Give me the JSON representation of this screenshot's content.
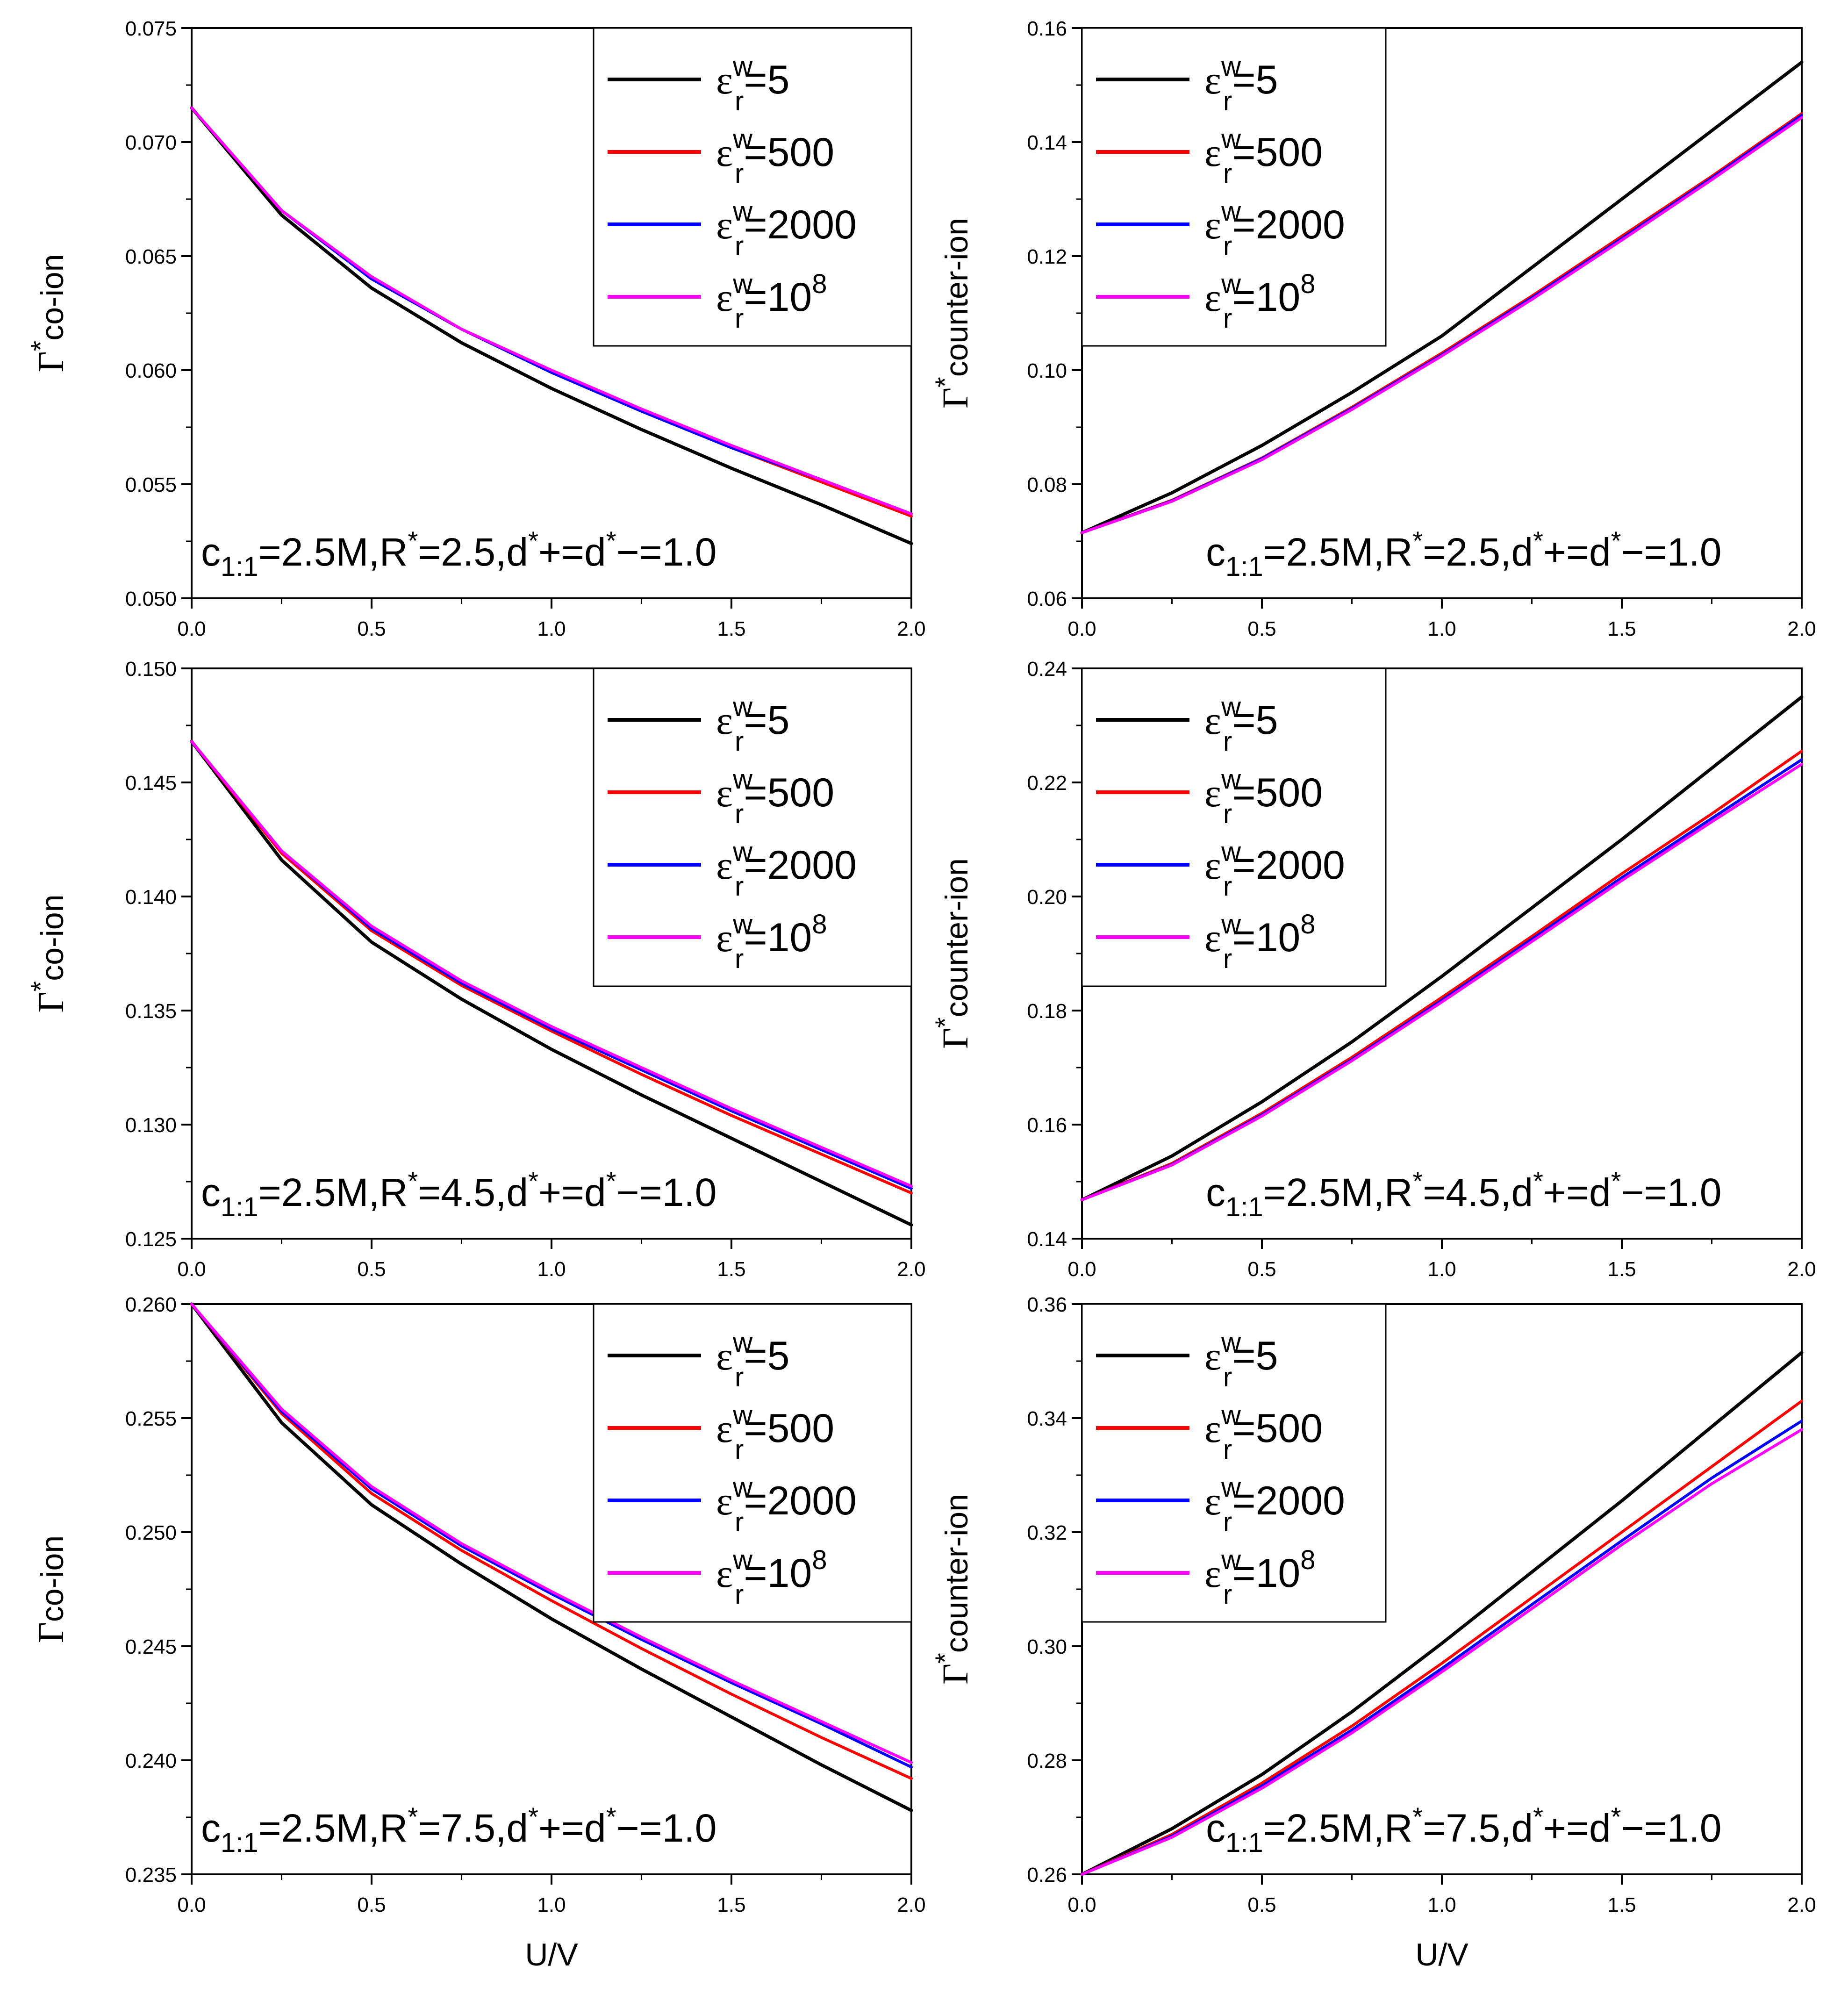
{
  "figure": {
    "x_axis_label": "U/V",
    "legend_epsilon_symbol": "ε",
    "legend_superscript": "w",
    "legend_subscript": "r",
    "series": [
      {
        "name": "ε^w_r=5",
        "value_text": "=5",
        "exp": "",
        "color": "#000000"
      },
      {
        "name": "ε^w_r=500",
        "value_text": "=500",
        "exp": "",
        "color": "#ff0000"
      },
      {
        "name": "ε^w_r=2000",
        "value_text": "=2000",
        "exp": "",
        "color": "#0000ff"
      },
      {
        "name": "ε^w_r=10^8",
        "value_text": "=10",
        "exp": "8",
        "color": "#ff00ff"
      }
    ]
  },
  "chart_data": [
    {
      "type": "line",
      "panel": "top-left",
      "ylabel": "Γ*co-ion",
      "ylabel_sym": "Γ",
      "ylabel_star": "*",
      "ylabel_rest": "co-ion",
      "xlabel": "",
      "xlim": [
        0,
        2
      ],
      "ylim": [
        0.05,
        0.075
      ],
      "xticks": [
        "0.0",
        "0.5",
        "1.0",
        "1.5",
        "2.0"
      ],
      "yticks": [
        "0.050",
        "0.055",
        "0.060",
        "0.065",
        "0.070",
        "0.075"
      ],
      "annotation": "c1:1=2.5M,R*=2.5,d*+=d*−=1.0",
      "ann": {
        "c": "c",
        "sub": "1:1",
        "a": "=2.5M,R",
        "star1": "*",
        "b": "=2.5,d",
        "star2": "*",
        "c2": "+=d",
        "star3": "*",
        "d": "−=1.0"
      },
      "legend_position": "top-right",
      "x": [
        0,
        0.25,
        0.5,
        0.75,
        1.0,
        1.25,
        1.5,
        1.75,
        2.0
      ],
      "series": [
        {
          "name": "ε^w_r=5",
          "values": [
            0.0715,
            0.0668,
            0.0636,
            0.0612,
            0.0592,
            0.0574,
            0.0557,
            0.0541,
            0.0524
          ]
        },
        {
          "name": "ε^w_r=500",
          "values": [
            0.0715,
            0.067,
            0.064,
            0.0618,
            0.0599,
            0.0582,
            0.0566,
            0.0551,
            0.0536
          ]
        },
        {
          "name": "ε^w_r=2000",
          "values": [
            0.0715,
            0.067,
            0.064,
            0.0618,
            0.0599,
            0.0582,
            0.0566,
            0.0552,
            0.0537
          ]
        },
        {
          "name": "ε^w_r=10^8",
          "values": [
            0.0715,
            0.067,
            0.0641,
            0.0618,
            0.06,
            0.0583,
            0.0567,
            0.0552,
            0.0537
          ]
        }
      ]
    },
    {
      "type": "line",
      "panel": "top-right",
      "ylabel": "Γ*counter-ion",
      "ylabel_sym": "Γ",
      "ylabel_star": "*",
      "ylabel_rest": "counter-ion",
      "xlabel": "",
      "xlim": [
        0,
        2
      ],
      "ylim": [
        0.06,
        0.16
      ],
      "xticks": [
        "0.0",
        "0.5",
        "1.0",
        "1.5",
        "2.0"
      ],
      "yticks": [
        "0.06",
        "0.08",
        "0.10",
        "0.12",
        "0.14",
        "0.16"
      ],
      "annotation": "c1:1=2.5M,R*=2.5,d*+=d*−=1.0",
      "ann": {
        "c": "c",
        "sub": "1:1",
        "a": "=2.5M,R",
        "star1": "*",
        "b": "=2.5,d",
        "star2": "*",
        "c2": "+=d",
        "star3": "*",
        "d": "−=1.0"
      },
      "legend_position": "top-left",
      "x": [
        0,
        0.25,
        0.5,
        0.75,
        1.0,
        1.25,
        1.5,
        1.75,
        2.0
      ],
      "series": [
        {
          "name": "ε^w_r=5",
          "values": [
            0.0715,
            0.0785,
            0.0868,
            0.0961,
            0.106,
            0.118,
            0.13,
            0.142,
            0.154
          ]
        },
        {
          "name": "ε^w_r=500",
          "values": [
            0.0715,
            0.0772,
            0.0846,
            0.0935,
            0.103,
            0.113,
            0.1235,
            0.134,
            0.145
          ]
        },
        {
          "name": "ε^w_r=2000",
          "values": [
            0.0715,
            0.0771,
            0.0845,
            0.0933,
            0.1027,
            0.1127,
            0.1231,
            0.1337,
            0.1447
          ]
        },
        {
          "name": "ε^w_r=10^8",
          "values": [
            0.0715,
            0.077,
            0.0843,
            0.0931,
            0.1025,
            0.1124,
            0.1228,
            0.1334,
            0.1443
          ]
        }
      ]
    },
    {
      "type": "line",
      "panel": "middle-left",
      "ylabel": "Γ*co-ion",
      "ylabel_sym": "Γ",
      "ylabel_star": "*",
      "ylabel_rest": "co-ion",
      "xlabel": "",
      "xlim": [
        0,
        2
      ],
      "ylim": [
        0.125,
        0.15
      ],
      "xticks": [
        "0.0",
        "0.5",
        "1.0",
        "1.5",
        "2.0"
      ],
      "yticks": [
        "0.125",
        "0.130",
        "0.135",
        "0.140",
        "0.145",
        "0.150"
      ],
      "annotation": "c1:1=2.5M,R*=4.5,d*+=d*−=1.0",
      "ann": {
        "c": "c",
        "sub": "1:1",
        "a": "=2.5M,R",
        "star1": "*",
        "b": "=4.5,d",
        "star2": "*",
        "c2": "+=d",
        "star3": "*",
        "d": "−=1.0"
      },
      "legend_position": "top-right",
      "x": [
        0,
        0.25,
        0.5,
        0.75,
        1.0,
        1.25,
        1.5,
        1.75,
        2.0
      ],
      "series": [
        {
          "name": "ε^w_r=5",
          "values": [
            0.1468,
            0.1416,
            0.138,
            0.1355,
            0.1333,
            0.1313,
            0.1294,
            0.1275,
            0.1256
          ]
        },
        {
          "name": "ε^w_r=500",
          "values": [
            0.1468,
            0.1419,
            0.1385,
            0.1361,
            0.1341,
            0.1322,
            0.1304,
            0.1287,
            0.127
          ]
        },
        {
          "name": "ε^w_r=2000",
          "values": [
            0.1468,
            0.142,
            0.1386,
            0.1362,
            0.1342,
            0.1324,
            0.1306,
            0.1289,
            0.1272
          ]
        },
        {
          "name": "ε^w_r=10^8",
          "values": [
            0.1468,
            0.142,
            0.1387,
            0.1363,
            0.1343,
            0.1325,
            0.1307,
            0.129,
            0.1273
          ]
        }
      ]
    },
    {
      "type": "line",
      "panel": "middle-right",
      "ylabel": "Γ*counter-ion",
      "ylabel_sym": "Γ",
      "ylabel_star": "*",
      "ylabel_rest": "counter-ion",
      "xlabel": "",
      "xlim": [
        0,
        2
      ],
      "ylim": [
        0.14,
        0.24
      ],
      "xticks": [
        "0.0",
        "0.5",
        "1.0",
        "1.5",
        "2.0"
      ],
      "yticks": [
        "0.14",
        "0.16",
        "0.18",
        "0.20",
        "0.22",
        "0.24"
      ],
      "annotation": "c1:1=2.5M,R*=4.5,d*+=d*−=1.0",
      "ann": {
        "c": "c",
        "sub": "1:1",
        "a": "=2.5M,R",
        "star1": "*",
        "b": "=4.5,d",
        "star2": "*",
        "c2": "+=d",
        "star3": "*",
        "d": "−=1.0"
      },
      "legend_position": "top-left",
      "x": [
        0,
        0.25,
        0.5,
        0.75,
        1.0,
        1.25,
        1.5,
        1.75,
        2.0
      ],
      "series": [
        {
          "name": "ε^w_r=5",
          "values": [
            0.1468,
            0.1545,
            0.164,
            0.1745,
            0.186,
            0.198,
            0.21,
            0.2225,
            0.235
          ]
        },
        {
          "name": "ε^w_r=500",
          "values": [
            0.1468,
            0.1532,
            0.162,
            0.1718,
            0.1823,
            0.193,
            0.204,
            0.2145,
            0.2255
          ]
        },
        {
          "name": "ε^w_r=2000",
          "values": [
            0.1468,
            0.153,
            0.1617,
            0.1714,
            0.1818,
            0.1925,
            0.2033,
            0.2137,
            0.224
          ]
        },
        {
          "name": "ε^w_r=10^8",
          "values": [
            0.1468,
            0.1529,
            0.1615,
            0.1712,
            0.1815,
            0.1921,
            0.2028,
            0.2131,
            0.2232
          ]
        }
      ]
    },
    {
      "type": "line",
      "panel": "bottom-left",
      "ylabel": "Γco-ion",
      "ylabel_sym": "Γ",
      "ylabel_star": "",
      "ylabel_rest": "co-ion",
      "xlabel": "U/V",
      "xlim": [
        0,
        2
      ],
      "ylim": [
        0.235,
        0.26
      ],
      "xticks": [
        "0.0",
        "0.5",
        "1.0",
        "1.5",
        "2.0"
      ],
      "yticks": [
        "0.235",
        "0.240",
        "0.245",
        "0.250",
        "0.255",
        "0.260"
      ],
      "annotation": "c1:1=2.5M,R*=7.5,d*+=d*−=1.0",
      "ann": {
        "c": "c",
        "sub": "1:1",
        "a": "=2.5M,R",
        "star1": "*",
        "b": "=7.5,d",
        "star2": "*",
        "c2": "+=d",
        "star3": "*",
        "d": "−=1.0"
      },
      "legend_position": "top-right",
      "x": [
        0,
        0.25,
        0.5,
        0.75,
        1.0,
        1.25,
        1.5,
        1.75,
        2.0
      ],
      "series": [
        {
          "name": "ε^w_r=5",
          "values": [
            0.26,
            0.2548,
            0.2512,
            0.2486,
            0.2462,
            0.244,
            0.2419,
            0.2398,
            0.2378
          ]
        },
        {
          "name": "ε^w_r=500",
          "values": [
            0.26,
            0.2552,
            0.2517,
            0.2492,
            0.247,
            0.2449,
            0.2429,
            0.241,
            0.2392
          ]
        },
        {
          "name": "ε^w_r=2000",
          "values": [
            0.26,
            0.2553,
            0.2519,
            0.2494,
            0.2473,
            0.2453,
            0.2434,
            0.2416,
            0.2397
          ]
        },
        {
          "name": "ε^w_r=10^8",
          "values": [
            0.26,
            0.2554,
            0.252,
            0.2495,
            0.2474,
            0.2454,
            0.2435,
            0.2417,
            0.2399
          ]
        }
      ]
    },
    {
      "type": "line",
      "panel": "bottom-right",
      "ylabel": "Γ*counter-ion",
      "ylabel_sym": "Γ",
      "ylabel_star": "*",
      "ylabel_rest": "counter-ion",
      "xlabel": "U/V",
      "xlim": [
        0,
        2
      ],
      "ylim": [
        0.26,
        0.36
      ],
      "xticks": [
        "0.0",
        "0.5",
        "1.0",
        "1.5",
        "2.0"
      ],
      "yticks": [
        "0.26",
        "0.28",
        "0.30",
        "0.32",
        "0.34",
        "0.36"
      ],
      "annotation": "c1:1=2.5M,R*=7.5,d*+=d*−=1.0",
      "ann": {
        "c": "c",
        "sub": "1:1",
        "a": "=2.5M,R",
        "star1": "*",
        "b": "=7.5,d",
        "star2": "*",
        "c2": "+=d",
        "star3": "*",
        "d": "−=1.0"
      },
      "legend_position": "top-left",
      "x": [
        0,
        0.25,
        0.5,
        0.75,
        1.0,
        1.25,
        1.5,
        1.75,
        2.0
      ],
      "series": [
        {
          "name": "ε^w_r=5",
          "values": [
            0.26,
            0.268,
            0.2775,
            0.2885,
            0.3005,
            0.313,
            0.3255,
            0.3385,
            0.3515
          ]
        },
        {
          "name": "ε^w_r=500",
          "values": [
            0.26,
            0.267,
            0.276,
            0.286,
            0.297,
            0.3085,
            0.32,
            0.3315,
            0.343
          ]
        },
        {
          "name": "ε^w_r=2000",
          "values": [
            0.26,
            0.2667,
            0.2755,
            0.2853,
            0.2961,
            0.3073,
            0.3185,
            0.3295,
            0.3395
          ]
        },
        {
          "name": "ε^w_r=10^8",
          "values": [
            0.26,
            0.2665,
            0.2751,
            0.2848,
            0.2955,
            0.3066,
            0.3178,
            0.3285,
            0.338
          ]
        }
      ]
    }
  ]
}
